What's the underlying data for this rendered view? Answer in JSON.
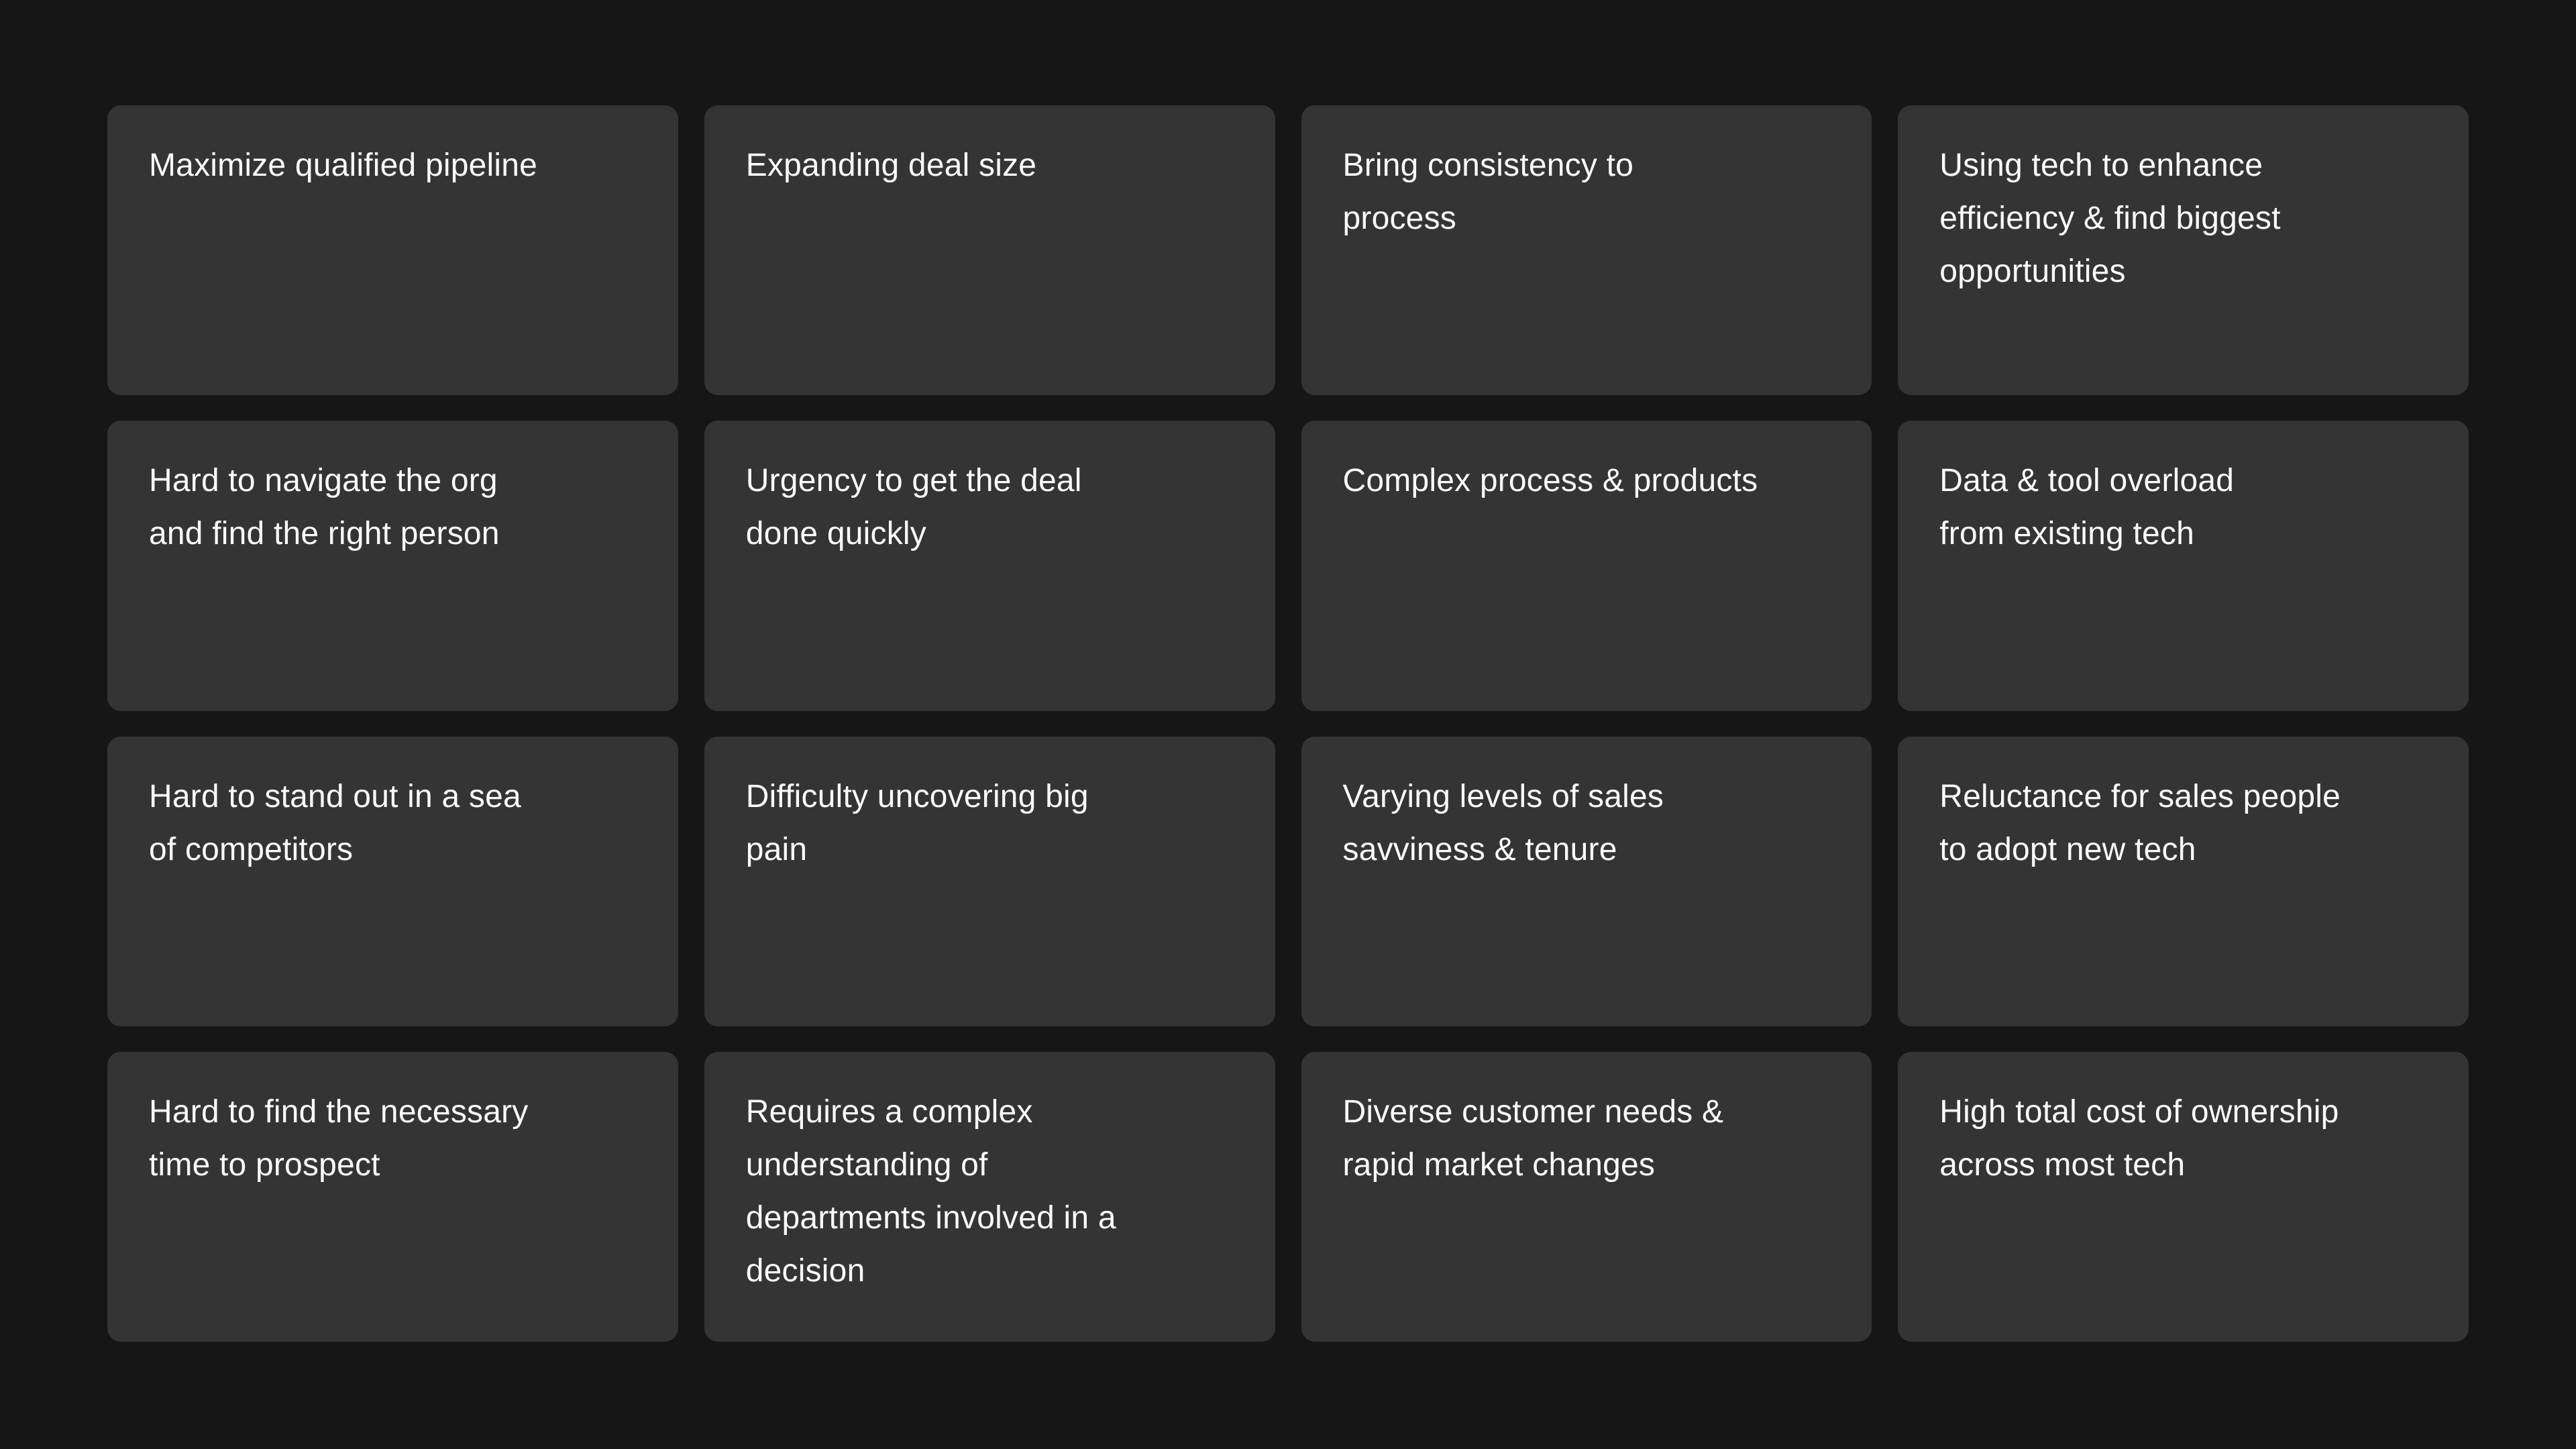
{
  "page": {
    "background_color": "#161616",
    "card_color": "#343434",
    "text_color": "#fafafa"
  },
  "cards": [
    {
      "text": "Maximize qualified pipeline"
    },
    {
      "text": "Expanding deal size"
    },
    {
      "text": "Bring consistency to\nprocess"
    },
    {
      "text": "Using tech to enhance\nefficiency & find biggest\nopportunities"
    },
    {
      "text": "Hard to navigate the org\nand find the right person"
    },
    {
      "text": "Urgency to get the deal\ndone quickly"
    },
    {
      "text": "Complex process & products"
    },
    {
      "text": "Data & tool overload\nfrom existing tech"
    },
    {
      "text": "Hard to stand out in a sea\nof competitors"
    },
    {
      "text": "Difficulty uncovering big\npain"
    },
    {
      "text": "Varying levels of sales\nsavviness & tenure"
    },
    {
      "text": "Reluctance for sales people\nto adopt new tech"
    },
    {
      "text": "Hard to find the necessary\ntime to prospect"
    },
    {
      "text": "Requires a complex\nunderstanding of\ndepartments involved in a\ndecision"
    },
    {
      "text": "Diverse customer needs &\nrapid market changes"
    },
    {
      "text": "High total cost of ownership\nacross most tech"
    }
  ]
}
